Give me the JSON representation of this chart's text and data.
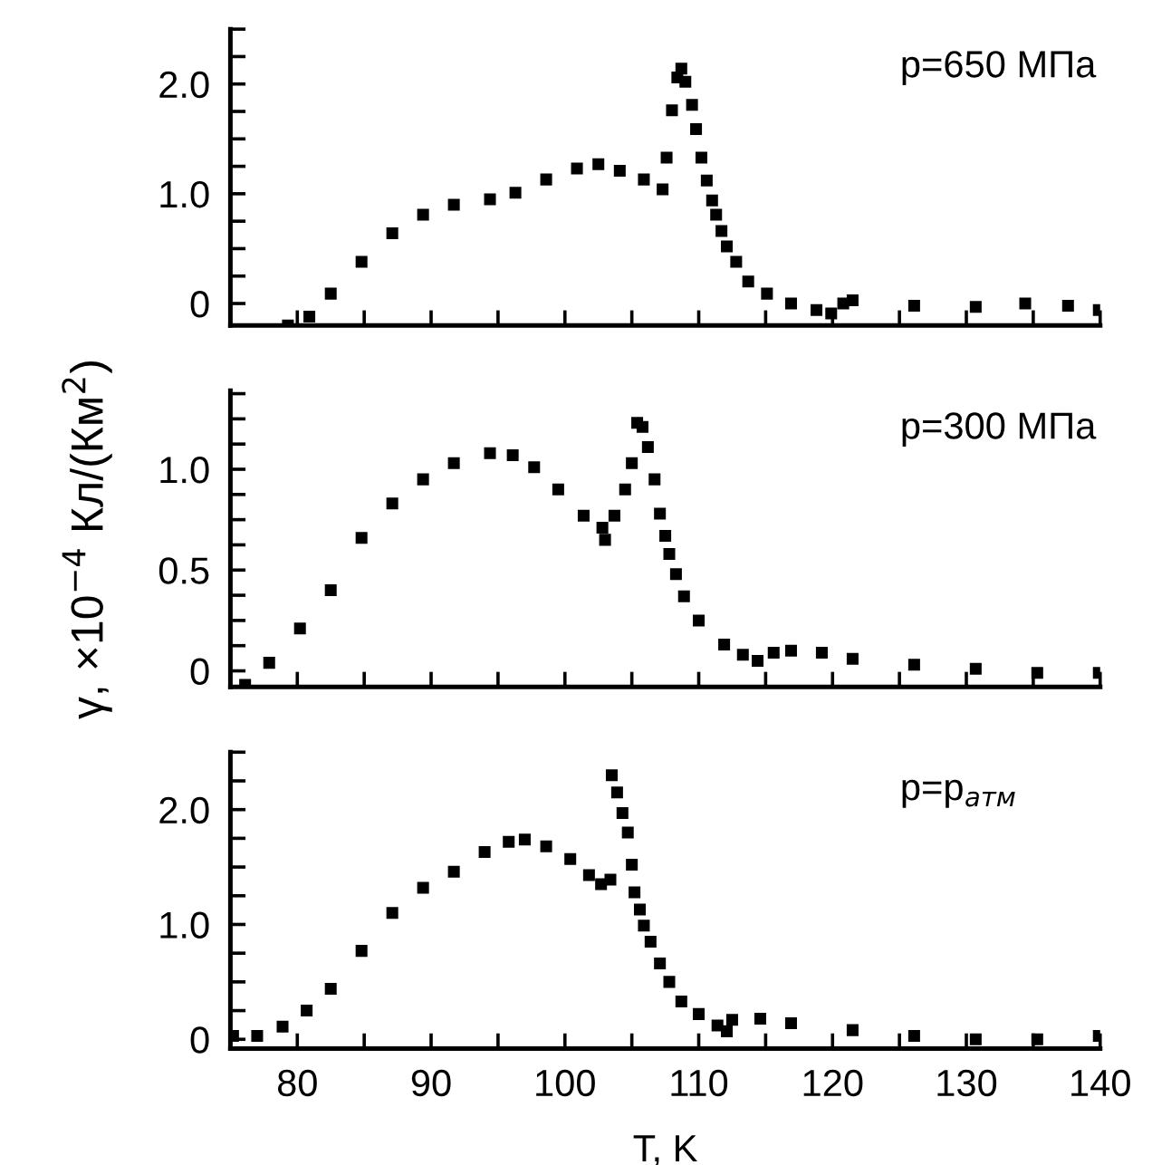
{
  "chart_data": [
    {
      "type": "scatter",
      "marker": "square",
      "annotations": [
        "p=650 МПа"
      ],
      "tick_labels": "y",
      "xlim": [
        75,
        140
      ],
      "xticks": [
        {
          "value": 80,
          "label": null
        },
        {
          "value": 85,
          "label": null
        },
        {
          "value": 90,
          "label": null
        },
        {
          "value": 95,
          "label": null
        },
        {
          "value": 100,
          "label": null
        },
        {
          "value": 105,
          "label": null
        },
        {
          "value": 110,
          "label": null
        },
        {
          "value": 115,
          "label": null
        },
        {
          "value": 120,
          "label": null
        },
        {
          "value": 125,
          "label": null
        },
        {
          "value": 130,
          "label": null
        },
        {
          "value": 135,
          "label": null
        },
        {
          "value": 140,
          "label": null
        }
      ],
      "ylim": [
        -0.2,
        2.5
      ],
      "yticks": [
        0,
        {
          "value": 0.25,
          "label": null
        },
        {
          "value": 0.5,
          "label": null
        },
        {
          "value": 0.75,
          "label": null
        },
        {
          "value": 1,
          "label": "1.0"
        },
        {
          "value": 1.25,
          "label": null
        },
        {
          "value": 1.5,
          "label": null
        },
        {
          "value": 1.75,
          "label": null
        },
        {
          "value": 2,
          "label": "2.0"
        },
        {
          "value": 2.25,
          "label": null
        },
        {
          "value": 2.5,
          "label": null
        }
      ],
      "series": [
        {
          "color": "#000000",
          "x": [
            79.3,
            80.9,
            82.5,
            84.8,
            87.1,
            89.4,
            91.7,
            94.4,
            96.3,
            98.6,
            100.9,
            102.5,
            104.1,
            105.9,
            107.3,
            107.6,
            108.0,
            108.4,
            108.7,
            109.0,
            109.5,
            109.8,
            110.2,
            110.6,
            111.0,
            111.3,
            111.7,
            112.1,
            112.8,
            113.7,
            115.1,
            116.9,
            118.8,
            119.9,
            120.8,
            121.5,
            126.1,
            130.7,
            134.4,
            137.6,
            139.9
          ],
          "values": [
            -0.2,
            -0.12,
            0.09,
            0.38,
            0.64,
            0.81,
            0.9,
            0.95,
            1.01,
            1.13,
            1.23,
            1.27,
            1.21,
            1.13,
            1.04,
            1.33,
            1.76,
            2.06,
            2.14,
            2.02,
            1.81,
            1.59,
            1.33,
            1.12,
            0.94,
            0.81,
            0.66,
            0.52,
            0.38,
            0.2,
            0.09,
            0,
            -0.06,
            -0.09,
            0,
            0.03,
            -0.02,
            -0.03,
            0,
            -0.02,
            -0.06
          ]
        }
      ]
    },
    {
      "type": "scatter",
      "marker": "square",
      "annotations": [
        "p=300 МПа"
      ],
      "tick_labels": "y",
      "ylabel": "γ, ×10$^{−4}$ Кл/(Км$^{2}$)",
      "xlim": [
        75,
        140
      ],
      "xticks": [
        {
          "value": 80,
          "label": null
        },
        {
          "value": 85,
          "label": null
        },
        {
          "value": 90,
          "label": null
        },
        {
          "value": 95,
          "label": null
        },
        {
          "value": 100,
          "label": null
        },
        {
          "value": 105,
          "label": null
        },
        {
          "value": 110,
          "label": null
        },
        {
          "value": 115,
          "label": null
        },
        {
          "value": 120,
          "label": null
        },
        {
          "value": 125,
          "label": null
        },
        {
          "value": 130,
          "label": null
        },
        {
          "value": 135,
          "label": null
        },
        {
          "value": 140,
          "label": null
        }
      ],
      "ylim": [
        -0.08,
        1.39
      ],
      "yticks": [
        0,
        {
          "value": 0.125,
          "label": null
        },
        {
          "value": 0.25,
          "label": null
        },
        {
          "value": 0.375,
          "label": null
        },
        0.5,
        {
          "value": 0.625,
          "label": null
        },
        {
          "value": 0.75,
          "label": null
        },
        {
          "value": 0.875,
          "label": null
        },
        {
          "value": 1,
          "label": "1.0"
        },
        {
          "value": 1.125,
          "label": null
        },
        {
          "value": 1.25,
          "label": null
        },
        {
          "value": 1.375,
          "label": null
        }
      ],
      "series": [
        {
          "color": "#000000",
          "x": [
            76.1,
            77.9,
            80.2,
            82.5,
            84.8,
            87.1,
            89.4,
            91.7,
            94.4,
            96.1,
            97.7,
            99.5,
            101.4,
            102.8,
            103.0,
            103.7,
            104.5,
            105.0,
            105.4,
            105.8,
            106.2,
            106.7,
            107.1,
            107.5,
            107.8,
            108.3,
            108.9,
            110.0,
            111.9,
            113.3,
            114.4,
            115.6,
            116.9,
            119.2,
            121.5,
            126.1,
            130.7,
            135.3,
            139.9
          ],
          "values": [
            -0.07,
            0.04,
            0.21,
            0.4,
            0.66,
            0.83,
            0.95,
            1.03,
            1.08,
            1.07,
            1.01,
            0.9,
            0.77,
            0.71,
            0.65,
            0.77,
            0.9,
            1.03,
            1.23,
            1.21,
            1.11,
            0.95,
            0.78,
            0.67,
            0.58,
            0.48,
            0.37,
            0.25,
            0.13,
            0.08,
            0.05,
            0.09,
            0.1,
            0.09,
            0.06,
            0.03,
            0.01,
            -0.01,
            -0.01
          ]
        }
      ]
    },
    {
      "type": "scatter",
      "marker": "square",
      "annotations": [
        "p=p$_{атм}$"
      ],
      "xlabel": "T, K",
      "xlim": [
        75,
        140
      ],
      "xticks": [
        80,
        {
          "value": 85,
          "label": null
        },
        90,
        {
          "value": 95,
          "label": null
        },
        100,
        {
          "value": 105,
          "label": null
        },
        110,
        {
          "value": 115,
          "label": null
        },
        120,
        {
          "value": 125,
          "label": null
        },
        130,
        {
          "value": 135,
          "label": null
        },
        140
      ],
      "ylim": [
        -0.08,
        2.5
      ],
      "yticks": [
        0,
        {
          "value": 0.25,
          "label": null
        },
        {
          "value": 0.5,
          "label": null
        },
        {
          "value": 0.75,
          "label": null
        },
        {
          "value": 1,
          "label": "1.0"
        },
        {
          "value": 1.25,
          "label": null
        },
        {
          "value": 1.5,
          "label": null
        },
        {
          "value": 1.75,
          "label": null
        },
        {
          "value": 2,
          "label": "2.0"
        },
        {
          "value": 2.25,
          "label": null
        },
        {
          "value": 2.5,
          "label": null
        }
      ],
      "series": [
        {
          "color": "#000000",
          "x": [
            75.2,
            77.0,
            78.9,
            80.7,
            82.5,
            84.8,
            87.1,
            89.4,
            91.7,
            94.0,
            95.8,
            97.0,
            98.6,
            100.4,
            101.8,
            102.7,
            103.4,
            103.5,
            103.9,
            104.3,
            104.7,
            105.0,
            105.2,
            105.6,
            105.9,
            106.4,
            107.1,
            107.8,
            108.7,
            110.0,
            111.4,
            112.1,
            112.5,
            114.6,
            116.9,
            121.5,
            126.1,
            130.7,
            135.3,
            139.9
          ],
          "values": [
            0.03,
            0.03,
            0.11,
            0.25,
            0.44,
            0.77,
            1.1,
            1.32,
            1.46,
            1.63,
            1.72,
            1.74,
            1.68,
            1.57,
            1.43,
            1.35,
            1.39,
            2.3,
            2.15,
            1.97,
            1.8,
            1.52,
            1.28,
            1.13,
            0.99,
            0.85,
            0.66,
            0.5,
            0.33,
            0.22,
            0.12,
            0.07,
            0.17,
            0.18,
            0.14,
            0.08,
            0.03,
            0,
            0,
            0.03
          ]
        }
      ]
    }
  ]
}
